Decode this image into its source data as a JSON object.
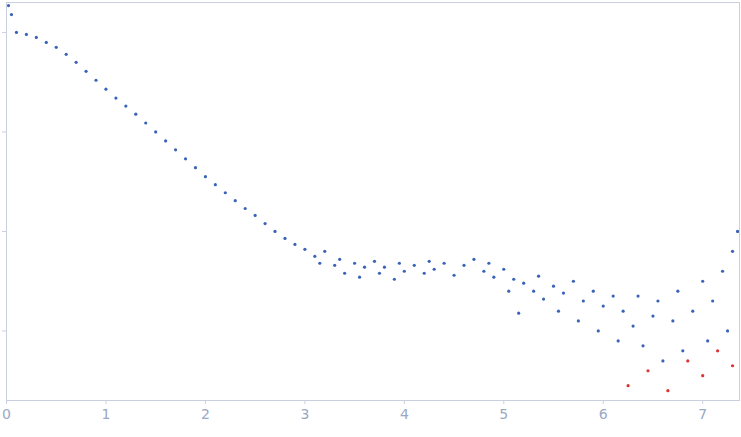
{
  "chart_data": {
    "type": "scatter",
    "log": "y",
    "grid": false,
    "tick_labels": "x",
    "xlim": [
      0,
      7.37
    ],
    "xticks": [
      0,
      1,
      2,
      3,
      4,
      5,
      6,
      7
    ],
    "ylim": [
      0.0002,
      2
    ],
    "yticks": [
      0.001,
      0.01,
      0.1,
      1
    ],
    "series": [
      {
        "color": "#3a63b8",
        "marker": "circle",
        "x": [
          0.02,
          0.05,
          0.1,
          0.2,
          0.3,
          0.4,
          0.5,
          0.6,
          0.7,
          0.8,
          0.9,
          1.0,
          1.1,
          1.2,
          1.3,
          1.4,
          1.5,
          1.6,
          1.7,
          1.8,
          1.9,
          2.0,
          2.1,
          2.2,
          2.3,
          2.4,
          2.5,
          2.6,
          2.7,
          2.8,
          2.9,
          3.0,
          3.1,
          3.15,
          3.2,
          3.3,
          3.35,
          3.4,
          3.5,
          3.55,
          3.6,
          3.7,
          3.75,
          3.8,
          3.9,
          3.95,
          4.0,
          4.1,
          4.2,
          4.25,
          4.3,
          4.4,
          4.5,
          4.6,
          4.7,
          4.8,
          4.85,
          4.9,
          5.0,
          5.05,
          5.1,
          5.15,
          5.2,
          5.3,
          5.35,
          5.4,
          5.5,
          5.55,
          5.6,
          5.7,
          5.75,
          5.8,
          5.9,
          5.95,
          6.0,
          6.1,
          6.15,
          6.2,
          6.3,
          6.35,
          6.4,
          6.5,
          6.55,
          6.6,
          6.7,
          6.75,
          6.8,
          6.9,
          7.0,
          7.05,
          7.1,
          7.2,
          7.25,
          7.3,
          7.35
        ],
        "values": [
          1.862,
          1.514,
          1,
          0.955,
          0.891,
          0.794,
          0.708,
          0.603,
          0.501,
          0.407,
          0.331,
          0.269,
          0.219,
          0.182,
          0.151,
          0.123,
          0.1,
          0.0813,
          0.0661,
          0.0537,
          0.0437,
          0.0355,
          0.0295,
          0.0245,
          0.0204,
          0.017,
          0.0145,
          0.012,
          0.01,
          0.00851,
          0.00741,
          0.00661,
          0.00562,
          0.00479,
          0.00631,
          0.00457,
          0.00525,
          0.0038,
          0.00479,
          0.00347,
          0.00437,
          0.00501,
          0.0038,
          0.00437,
          0.00331,
          0.00479,
          0.00398,
          0.00457,
          0.0038,
          0.00501,
          0.00417,
          0.00479,
          0.00363,
          0.00457,
          0.00525,
          0.00398,
          0.00479,
          0.00347,
          0.00417,
          0.00251,
          0.00331,
          0.00151,
          0.00302,
          0.00251,
          0.00355,
          0.00209,
          0.00282,
          0.00158,
          0.0024,
          0.00316,
          0.00126,
          0.002,
          0.00251,
          0.001,
          0.00178,
          0.00224,
          0.000794,
          0.00158,
          0.00112,
          0.00224,
          0.000708,
          0.00141,
          0.002,
          0.0005,
          0.00126,
          0.00251,
          0.000631,
          0.00158,
          0.00316,
          0.000794,
          0.002,
          0.00398,
          0.001,
          0.00631,
          0.01
        ]
      },
      {
        "color": "#e03030",
        "marker": "circle",
        "x": [
          6.25,
          6.45,
          6.65,
          6.85,
          7.0,
          7.15,
          7.3
        ],
        "values": [
          0.000282,
          0.000398,
          0.000251,
          0.0005,
          0.000355,
          0.000631,
          0.000447
        ]
      }
    ]
  }
}
